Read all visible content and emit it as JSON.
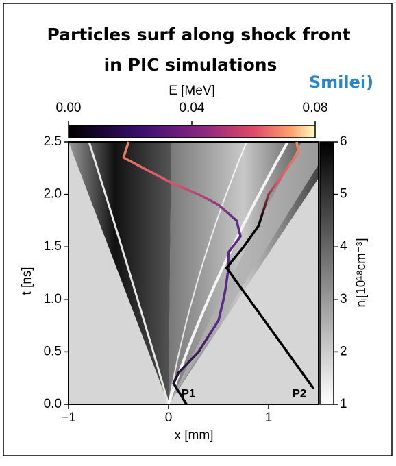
{
  "chart_data": {
    "type": "line",
    "title": [
      "Particles surf along shock front",
      "in PIC simulations"
    ],
    "logo": "Smilei)",
    "xlabel": "x [mm]",
    "ylabel": "t [ns]",
    "xlim": [
      -1,
      1.5
    ],
    "ylim": [
      0,
      2.5
    ],
    "xticks": [
      {
        "value": -1,
        "label": "−1"
      },
      0,
      1
    ],
    "yticks": [
      {
        "value": 0,
        "label": "0.0"
      },
      0.5,
      {
        "value": 1,
        "label": "1.0"
      },
      1.5,
      {
        "value": 2,
        "label": "2.0"
      },
      2.5
    ],
    "colorbar_top": {
      "label": "E [MeV]",
      "lim": [
        0,
        0.08
      ],
      "ticks": [
        {
          "value": 0,
          "label": "0.00"
        },
        {
          "value": 0.04,
          "label": "0.04"
        },
        {
          "value": 0.08,
          "label": "0.08"
        }
      ]
    },
    "colorbar_right": {
      "label": "nᵢ[10¹⁸cm⁻³]",
      "lim": [
        1,
        6
      ],
      "ticks": [
        1,
        2,
        3,
        4,
        5,
        6
      ]
    },
    "series": [
      {
        "name": "P1",
        "color": "#5b2a86",
        "x": [
          0.18,
          0.05,
          0.1,
          0.3,
          0.5,
          0.55,
          0.57,
          0.6,
          0.6,
          0.72,
          0.68,
          0.5,
          0.3,
          0.05,
          -0.15,
          -0.45,
          -0.4
        ],
        "values": [
          0,
          0.2,
          0.3,
          0.5,
          0.8,
          1.0,
          1.1,
          1.3,
          1.45,
          1.6,
          1.75,
          1.9,
          2.0,
          2.1,
          2.2,
          2.35,
          2.5
        ]
      },
      {
        "name": "P2",
        "color": "#000000",
        "x": [
          1.45,
          0.58,
          0.75,
          0.9,
          1.0,
          1.15,
          1.3,
          1.28
        ],
        "values": [
          0.15,
          1.3,
          1.5,
          1.7,
          2.0,
          2.2,
          2.4,
          2.5
        ]
      }
    ]
  }
}
